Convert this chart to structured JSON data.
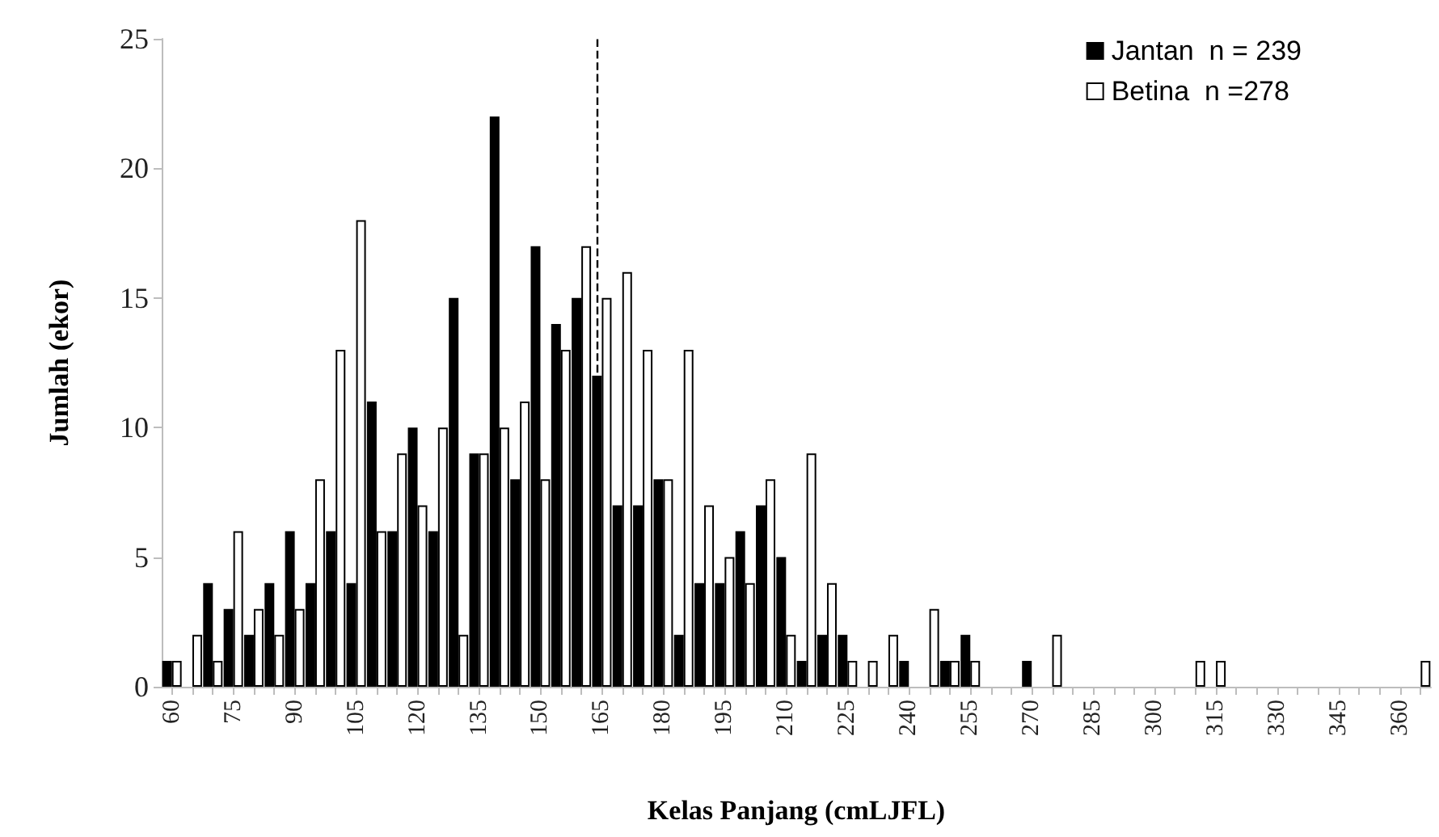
{
  "chart_data": {
    "type": "bar",
    "xlabel": "Kelas Panjang (cmLJFL)",
    "ylabel": "Jumlah (ekor)",
    "x": [
      60,
      65,
      70,
      75,
      80,
      85,
      90,
      95,
      100,
      105,
      110,
      115,
      120,
      125,
      130,
      135,
      140,
      145,
      150,
      155,
      160,
      165,
      170,
      175,
      180,
      185,
      190,
      195,
      200,
      205,
      210,
      215,
      220,
      225,
      230,
      235,
      240,
      245,
      250,
      255,
      260,
      265,
      270,
      275,
      280,
      285,
      290,
      295,
      300,
      305,
      310,
      315,
      320,
      325,
      330,
      335,
      340,
      345,
      350,
      355,
      360,
      365
    ],
    "series": [
      {
        "name": "Jantan  n = 239",
        "color": "#000000",
        "values": [
          1,
          0,
          4,
          3,
          2,
          4,
          6,
          4,
          6,
          4,
          11,
          6,
          10,
          6,
          15,
          9,
          22,
          8,
          17,
          14,
          15,
          12,
          7,
          7,
          8,
          2,
          4,
          4,
          6,
          7,
          5,
          1,
          2,
          2,
          0,
          0,
          1,
          0,
          1,
          2,
          0,
          0,
          1,
          0,
          0,
          0,
          0,
          0,
          0,
          0,
          0,
          0,
          0,
          0,
          0,
          0,
          0,
          0,
          0,
          0,
          0,
          0
        ]
      },
      {
        "name": "Betina  n =278",
        "color": "#ffffff",
        "values": [
          1,
          2,
          1,
          6,
          3,
          2,
          3,
          8,
          13,
          18,
          6,
          9,
          7,
          10,
          2,
          9,
          10,
          11,
          8,
          13,
          17,
          15,
          16,
          13,
          8,
          13,
          7,
          5,
          4,
          8,
          2,
          9,
          4,
          1,
          1,
          2,
          0,
          3,
          1,
          1,
          0,
          0,
          0,
          2,
          0,
          0,
          0,
          0,
          0,
          0,
          1,
          1,
          0,
          0,
          0,
          0,
          0,
          0,
          0,
          0,
          0,
          1
        ]
      }
    ],
    "xlim": [
      57.5,
      367.5
    ],
    "xticks": [
      60,
      {
        "value": 65,
        "label": null
      },
      {
        "value": 70,
        "label": null
      },
      75,
      {
        "value": 80,
        "label": null
      },
      {
        "value": 85,
        "label": null
      },
      90,
      {
        "value": 95,
        "label": null
      },
      {
        "value": 100,
        "label": null
      },
      105,
      {
        "value": 110,
        "label": null
      },
      {
        "value": 115,
        "label": null
      },
      120,
      {
        "value": 125,
        "label": null
      },
      {
        "value": 130,
        "label": null
      },
      135,
      {
        "value": 140,
        "label": null
      },
      {
        "value": 145,
        "label": null
      },
      150,
      {
        "value": 155,
        "label": null
      },
      {
        "value": 160,
        "label": null
      },
      165,
      {
        "value": 170,
        "label": null
      },
      {
        "value": 175,
        "label": null
      },
      180,
      {
        "value": 185,
        "label": null
      },
      {
        "value": 190,
        "label": null
      },
      195,
      {
        "value": 200,
        "label": null
      },
      {
        "value": 205,
        "label": null
      },
      210,
      {
        "value": 215,
        "label": null
      },
      {
        "value": 220,
        "label": null
      },
      225,
      {
        "value": 230,
        "label": null
      },
      {
        "value": 235,
        "label": null
      },
      240,
      {
        "value": 245,
        "label": null
      },
      {
        "value": 250,
        "label": null
      },
      255,
      {
        "value": 260,
        "label": null
      },
      {
        "value": 265,
        "label": null
      },
      270,
      {
        "value": 275,
        "label": null
      },
      {
        "value": 280,
        "label": null
      },
      285,
      {
        "value": 290,
        "label": null
      },
      {
        "value": 295,
        "label": null
      },
      300,
      {
        "value": 305,
        "label": null
      },
      {
        "value": 310,
        "label": null
      },
      315,
      {
        "value": 320,
        "label": null
      },
      {
        "value": 325,
        "label": null
      },
      330,
      {
        "value": 335,
        "label": null
      },
      {
        "value": 340,
        "label": null
      },
      345,
      {
        "value": 350,
        "label": null
      },
      {
        "value": 355,
        "label": null
      },
      360,
      {
        "value": 365,
        "label": null
      }
    ],
    "ylim": [
      0,
      25
    ],
    "yticks": [
      0,
      5,
      10,
      15,
      20,
      25
    ],
    "ref_lines": [
      {
        "axis": "x",
        "value": 165,
        "line_style": "dashed",
        "color": "#000000"
      }
    ],
    "legend": "top right",
    "grid": false
  }
}
